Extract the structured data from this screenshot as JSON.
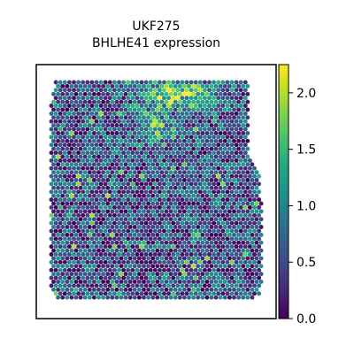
{
  "chart_data": {
    "type": "heatmap",
    "title": "UKF275",
    "subtitle": "BHLHE41 expression",
    "xlabel": "",
    "ylabel": "",
    "colormap": "viridis",
    "color_range": [
      0,
      2.25
    ],
    "colorbar": {
      "ticks": [
        0,
        0.5,
        1,
        1.5,
        2
      ],
      "tick_labels": [
        "0.0",
        "0.5",
        "1.0",
        "1.5",
        "2.0"
      ],
      "placement": "right"
    },
    "spot_layout": "hexagonal",
    "spot_count_estimate": 2600,
    "expression_summary": {
      "typical_range": [
        0.0,
        1.3
      ],
      "high_region": "top-center to top-right",
      "high_values": [
        1.8,
        2.2
      ]
    },
    "grid": false
  }
}
